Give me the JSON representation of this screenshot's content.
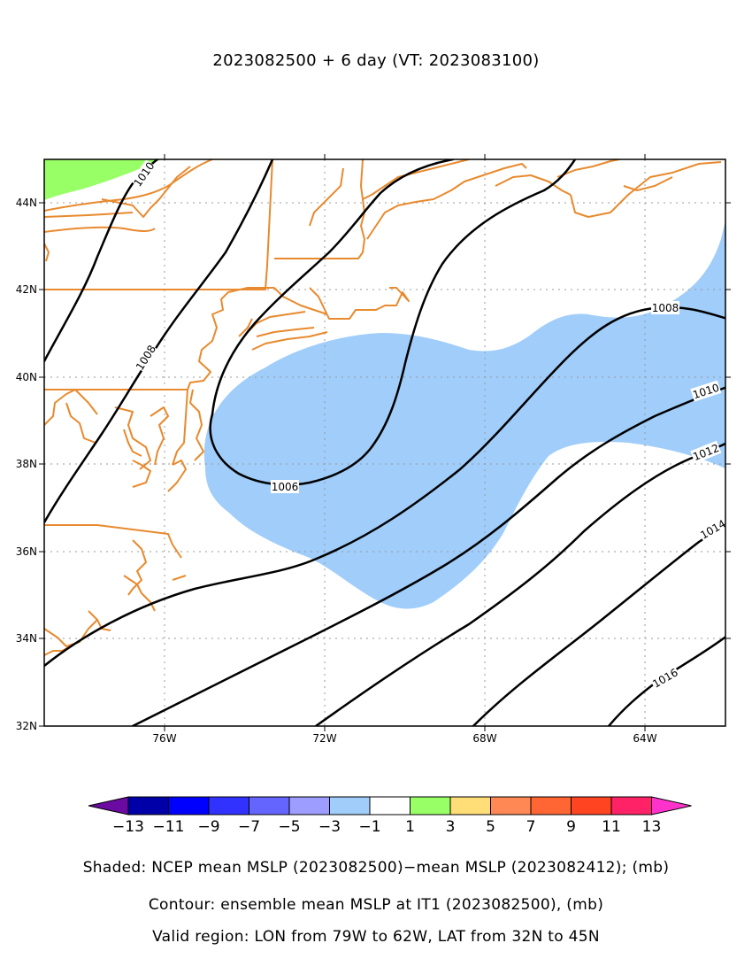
{
  "title": "2023082500 + 6 day (VT: 2023083100)",
  "map": {
    "lon_range": [
      -79,
      -62
    ],
    "lat_range": [
      32,
      45
    ],
    "x_ticks": [
      "76W",
      "72W",
      "68W",
      "64W"
    ],
    "y_ticks": [
      "32N",
      "34N",
      "36N",
      "38N",
      "40N",
      "42N",
      "44N"
    ],
    "contour_labels": [
      "1010",
      "1008",
      "1006",
      "1008",
      "1010",
      "1012",
      "1014",
      "1016"
    ],
    "colors": {
      "coast": "#e88a2e",
      "contour": "#000000",
      "shade_neg3": "#a0cdfa",
      "shade_pos1": "#99ff66",
      "grid": "#999999"
    }
  },
  "colorbar": {
    "labels": [
      "−13",
      "−11",
      "−9",
      "−7",
      "−5",
      "−3",
      "−1",
      "1",
      "3",
      "5",
      "7",
      "9",
      "11",
      "13"
    ],
    "colors": [
      "#6a0aa0",
      "#0000a8",
      "#0000ff",
      "#3232ff",
      "#6464ff",
      "#9d9dff",
      "#a0cdfa",
      "#ffffff",
      "#99ff66",
      "#ffdd77",
      "#ff8855",
      "#ff6633",
      "#ff4422",
      "#ff2266",
      "#ff33cc"
    ]
  },
  "captions": {
    "shaded": "Shaded: NCEP mean MSLP (2023082500)−mean MSLP (2023082412); (mb)",
    "contour": "Contour: ensemble mean MSLP at IT1 (2023082500), (mb)",
    "region": "Valid region: LON from 79W to 62W, LAT from 32N to 45N"
  }
}
